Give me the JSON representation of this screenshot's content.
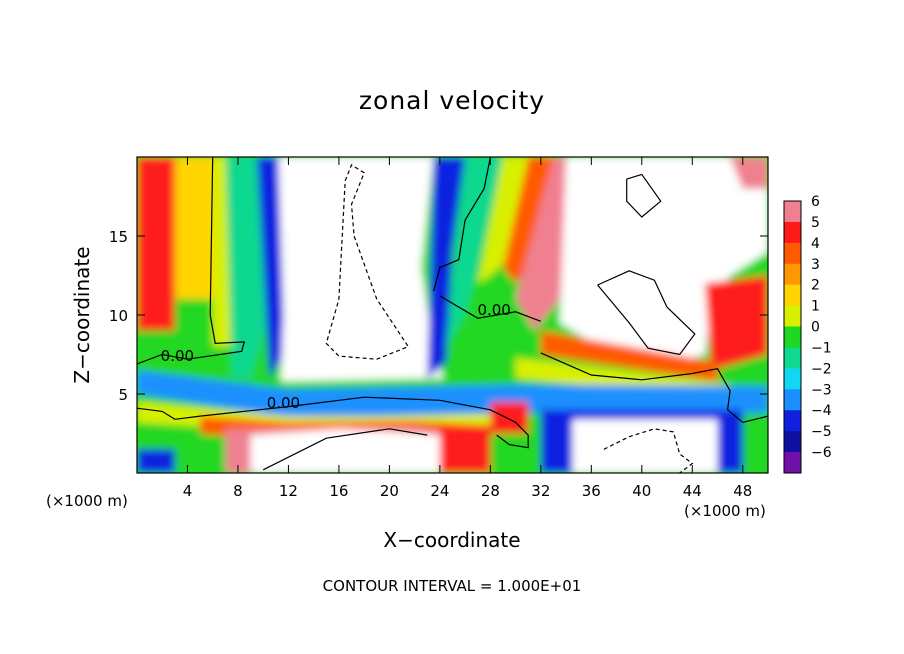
{
  "chart_data": {
    "type": "heatmap",
    "title": "zonal velocity",
    "xlabel": "X−coordinate",
    "ylabel": "Z−coordinate",
    "x_unit_label": "(×1000 m)",
    "footnote": "CONTOUR INTERVAL = 1.000E+01",
    "xlim": [
      0,
      50
    ],
    "ylim": [
      0,
      20
    ],
    "x_ticks": [
      4,
      8,
      12,
      16,
      20,
      24,
      28,
      32,
      36,
      40,
      44,
      48
    ],
    "y_ticks": [
      5,
      10,
      15
    ],
    "contour_label": "0.00",
    "colorbar": {
      "min": -6,
      "max": 6,
      "ticks": [
        6,
        5,
        4,
        3,
        2,
        1,
        0,
        -1,
        -2,
        -3,
        -4,
        -5,
        -6
      ],
      "tick_labels": [
        "6",
        "5",
        "4",
        "3",
        "2",
        "1",
        "0",
        "−1",
        "−2",
        "−3",
        "−4",
        "−5",
        "−6"
      ],
      "colors": [
        "#f08090",
        "#ff1a1a",
        "#ff5a00",
        "#ff9800",
        "#ffd400",
        "#d8f000",
        "#20d820",
        "#10d890",
        "#10d8f0",
        "#1a90ff",
        "#1020e0",
        "#1010a0",
        "#7010a8"
      ],
      "above_max": "white"
    }
  }
}
